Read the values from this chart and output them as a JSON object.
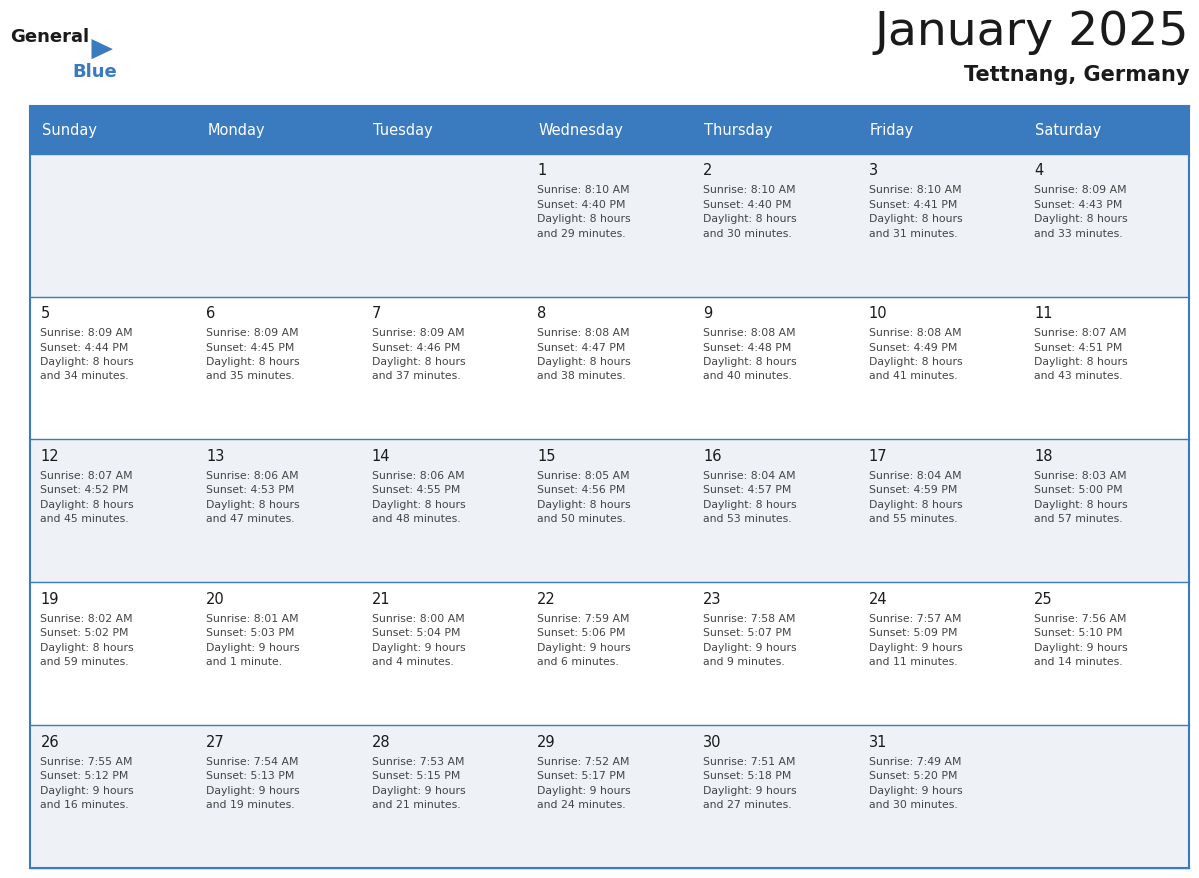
{
  "title": "January 2025",
  "subtitle": "Tettnang, Germany",
  "header_bg": "#3a7abf",
  "header_text": "#ffffff",
  "days_of_week": [
    "Sunday",
    "Monday",
    "Tuesday",
    "Wednesday",
    "Thursday",
    "Friday",
    "Saturday"
  ],
  "row_bg_odd": "#eef2f7",
  "row_bg_even": "#ffffff",
  "cell_border": "#3a7abf",
  "day_number_color": "#1a1a1a",
  "cell_text_color": "#444444",
  "calendar": [
    [
      {
        "day": "",
        "info": ""
      },
      {
        "day": "",
        "info": ""
      },
      {
        "day": "",
        "info": ""
      },
      {
        "day": "1",
        "info": "Sunrise: 8:10 AM\nSunset: 4:40 PM\nDaylight: 8 hours\nand 29 minutes."
      },
      {
        "day": "2",
        "info": "Sunrise: 8:10 AM\nSunset: 4:40 PM\nDaylight: 8 hours\nand 30 minutes."
      },
      {
        "day": "3",
        "info": "Sunrise: 8:10 AM\nSunset: 4:41 PM\nDaylight: 8 hours\nand 31 minutes."
      },
      {
        "day": "4",
        "info": "Sunrise: 8:09 AM\nSunset: 4:43 PM\nDaylight: 8 hours\nand 33 minutes."
      }
    ],
    [
      {
        "day": "5",
        "info": "Sunrise: 8:09 AM\nSunset: 4:44 PM\nDaylight: 8 hours\nand 34 minutes."
      },
      {
        "day": "6",
        "info": "Sunrise: 8:09 AM\nSunset: 4:45 PM\nDaylight: 8 hours\nand 35 minutes."
      },
      {
        "day": "7",
        "info": "Sunrise: 8:09 AM\nSunset: 4:46 PM\nDaylight: 8 hours\nand 37 minutes."
      },
      {
        "day": "8",
        "info": "Sunrise: 8:08 AM\nSunset: 4:47 PM\nDaylight: 8 hours\nand 38 minutes."
      },
      {
        "day": "9",
        "info": "Sunrise: 8:08 AM\nSunset: 4:48 PM\nDaylight: 8 hours\nand 40 minutes."
      },
      {
        "day": "10",
        "info": "Sunrise: 8:08 AM\nSunset: 4:49 PM\nDaylight: 8 hours\nand 41 minutes."
      },
      {
        "day": "11",
        "info": "Sunrise: 8:07 AM\nSunset: 4:51 PM\nDaylight: 8 hours\nand 43 minutes."
      }
    ],
    [
      {
        "day": "12",
        "info": "Sunrise: 8:07 AM\nSunset: 4:52 PM\nDaylight: 8 hours\nand 45 minutes."
      },
      {
        "day": "13",
        "info": "Sunrise: 8:06 AM\nSunset: 4:53 PM\nDaylight: 8 hours\nand 47 minutes."
      },
      {
        "day": "14",
        "info": "Sunrise: 8:06 AM\nSunset: 4:55 PM\nDaylight: 8 hours\nand 48 minutes."
      },
      {
        "day": "15",
        "info": "Sunrise: 8:05 AM\nSunset: 4:56 PM\nDaylight: 8 hours\nand 50 minutes."
      },
      {
        "day": "16",
        "info": "Sunrise: 8:04 AM\nSunset: 4:57 PM\nDaylight: 8 hours\nand 53 minutes."
      },
      {
        "day": "17",
        "info": "Sunrise: 8:04 AM\nSunset: 4:59 PM\nDaylight: 8 hours\nand 55 minutes."
      },
      {
        "day": "18",
        "info": "Sunrise: 8:03 AM\nSunset: 5:00 PM\nDaylight: 8 hours\nand 57 minutes."
      }
    ],
    [
      {
        "day": "19",
        "info": "Sunrise: 8:02 AM\nSunset: 5:02 PM\nDaylight: 8 hours\nand 59 minutes."
      },
      {
        "day": "20",
        "info": "Sunrise: 8:01 AM\nSunset: 5:03 PM\nDaylight: 9 hours\nand 1 minute."
      },
      {
        "day": "21",
        "info": "Sunrise: 8:00 AM\nSunset: 5:04 PM\nDaylight: 9 hours\nand 4 minutes."
      },
      {
        "day": "22",
        "info": "Sunrise: 7:59 AM\nSunset: 5:06 PM\nDaylight: 9 hours\nand 6 minutes."
      },
      {
        "day": "23",
        "info": "Sunrise: 7:58 AM\nSunset: 5:07 PM\nDaylight: 9 hours\nand 9 minutes."
      },
      {
        "day": "24",
        "info": "Sunrise: 7:57 AM\nSunset: 5:09 PM\nDaylight: 9 hours\nand 11 minutes."
      },
      {
        "day": "25",
        "info": "Sunrise: 7:56 AM\nSunset: 5:10 PM\nDaylight: 9 hours\nand 14 minutes."
      }
    ],
    [
      {
        "day": "26",
        "info": "Sunrise: 7:55 AM\nSunset: 5:12 PM\nDaylight: 9 hours\nand 16 minutes."
      },
      {
        "day": "27",
        "info": "Sunrise: 7:54 AM\nSunset: 5:13 PM\nDaylight: 9 hours\nand 19 minutes."
      },
      {
        "day": "28",
        "info": "Sunrise: 7:53 AM\nSunset: 5:15 PM\nDaylight: 9 hours\nand 21 minutes."
      },
      {
        "day": "29",
        "info": "Sunrise: 7:52 AM\nSunset: 5:17 PM\nDaylight: 9 hours\nand 24 minutes."
      },
      {
        "day": "30",
        "info": "Sunrise: 7:51 AM\nSunset: 5:18 PM\nDaylight: 9 hours\nand 27 minutes."
      },
      {
        "day": "31",
        "info": "Sunrise: 7:49 AM\nSunset: 5:20 PM\nDaylight: 9 hours\nand 30 minutes."
      },
      {
        "day": "",
        "info": ""
      }
    ]
  ]
}
